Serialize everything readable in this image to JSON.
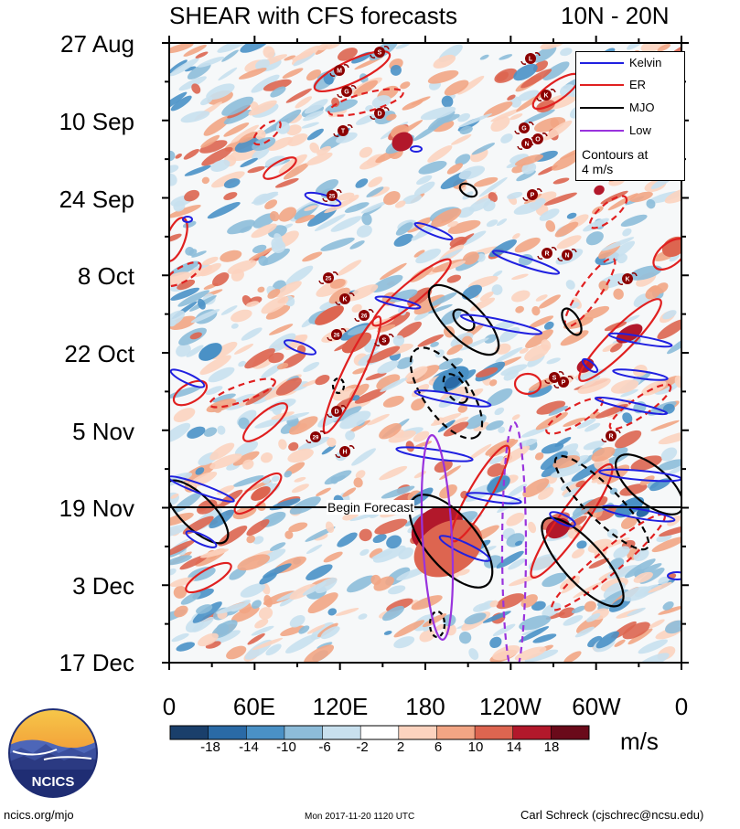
{
  "title": {
    "left": "SHEAR with CFS forecasts",
    "right": "10N - 20N"
  },
  "chart_data": {
    "type": "heatmap",
    "description_axes": "Hovmoller: longitude (x) vs time (y)",
    "x_tick_labels": [
      "0",
      "60E",
      "120E",
      "180",
      "120W",
      "60W",
      "0"
    ],
    "x_degrees": [
      0,
      60,
      120,
      180,
      240,
      300,
      360
    ],
    "y_tick_labels": [
      "27 Aug",
      "10 Sep",
      "24 Sep",
      "8 Oct",
      "22 Oct",
      "5 Nov",
      "19 Nov",
      "3 Dec",
      "17 Dec"
    ],
    "y_days": [
      0,
      14,
      28,
      42,
      56,
      70,
      84,
      98,
      112
    ],
    "colorbar": {
      "labels": [
        "-18",
        "-14",
        "-10",
        "-6",
        "-2",
        "2",
        "6",
        "10",
        "14",
        "18"
      ],
      "colors": [
        "#1a3f6b",
        "#2a6aa6",
        "#4a91c6",
        "#8dbcd9",
        "#c8e0ee",
        "#ffffff",
        "#fcd3bf",
        "#f2a584",
        "#dd6550",
        "#b2182b",
        "#6a0a1a"
      ],
      "units": "m/s"
    },
    "legend": [
      {
        "name": "Kelvin",
        "color": "#2020e0"
      },
      {
        "name": "ER",
        "color": "#e02020"
      },
      {
        "name": "MJO",
        "color": "#000000"
      },
      {
        "name": "Low",
        "color": "#9933dd"
      }
    ],
    "contour_note": [
      "Contours at",
      "4 m/s"
    ],
    "forecast_start_label": "Begin Forecast",
    "forecast_start_day": 84,
    "storm_labels": [
      "S",
      "M",
      "G",
      "D",
      "T",
      "L",
      "K",
      "G",
      "N",
      "O",
      "P",
      "R",
      "N",
      "25",
      "25",
      "K",
      "26",
      "26",
      "S",
      "D",
      "29",
      "H",
      "S",
      "P",
      "R",
      "K"
    ]
  },
  "footer": {
    "left": "ncics.org/mjo",
    "center": "Mon 2017-11-20 1120 UTC",
    "right": "Carl Schreck (cjschrec@ncsu.edu)"
  },
  "logo": {
    "text": "NCICS"
  },
  "colors": {
    "kelvin": "#2020e0",
    "er": "#e02020",
    "mjo": "#000000",
    "low": "#9933dd"
  }
}
